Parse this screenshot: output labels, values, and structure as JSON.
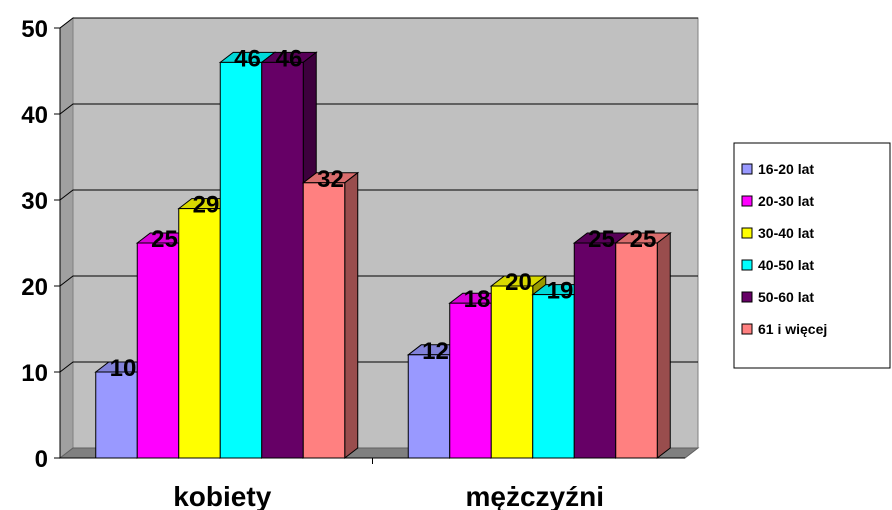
{
  "chart_data": {
    "type": "bar",
    "title": "",
    "xlabel": "",
    "ylabel": "",
    "categories": [
      "kobiety",
      "mężczyźni"
    ],
    "series": [
      {
        "name": "16-20 lat",
        "values": [
          10,
          12
        ],
        "color": "#9999FF"
      },
      {
        "name": "20-30 lat",
        "values": [
          25,
          18
        ],
        "color": "#FF00FF"
      },
      {
        "name": "30-40 lat",
        "values": [
          29,
          20
        ],
        "color": "#FFFF00"
      },
      {
        "name": "40-50 lat",
        "values": [
          46,
          19
        ],
        "color": "#00FFFF"
      },
      {
        "name": "50-60 lat",
        "values": [
          46,
          25
        ],
        "color": "#660066"
      },
      {
        "name": "61 i więcej",
        "values": [
          32,
          25
        ],
        "color": "#FF8080"
      }
    ],
    "ylim": [
      0,
      50
    ],
    "yticks": [
      0,
      10,
      20,
      30,
      40,
      50
    ],
    "grid": true,
    "legend": "right",
    "plot_background": "#C0C0C0",
    "style": "3d"
  }
}
